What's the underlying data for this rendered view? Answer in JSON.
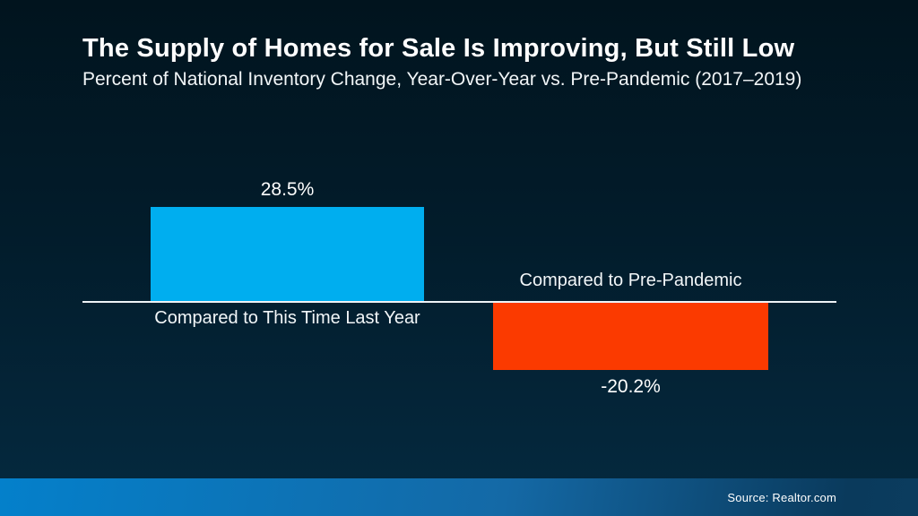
{
  "header": {
    "title": "The Supply of Homes for Sale Is Improving, But Still Low",
    "subtitle": "Percent of National Inventory Change, Year-Over-Year vs. Pre-Pandemic (2017–2019)"
  },
  "chart_data": {
    "type": "bar",
    "orientation": "vertical",
    "title": "The Supply of Homes for Sale Is Improving, But Still Low",
    "subtitle": "Percent of National Inventory Change, Year-Over-Year vs. Pre-Pandemic (2017–2019)",
    "categories": [
      "Compared to This Time Last Year",
      "Compared to Pre-Pandemic"
    ],
    "values": [
      28.5,
      -20.2
    ],
    "value_labels": [
      "28.5%",
      "-20.2%"
    ],
    "series_colors": [
      "#00AEEF",
      "#FB3A00"
    ],
    "baseline": 0,
    "axis_color": "#EEF3F6",
    "grid": false,
    "legend": false,
    "value_label_position": "outside-end",
    "ylim": [
      -25,
      32
    ]
  },
  "footer": {
    "source": "Source: Realtor.com",
    "band_color_left": "#0480CB",
    "band_color_right": "#0A3A5C"
  },
  "colors": {
    "background_top": "#01141E",
    "background_bottom": "#052A40",
    "text": "#FFFFFF"
  }
}
